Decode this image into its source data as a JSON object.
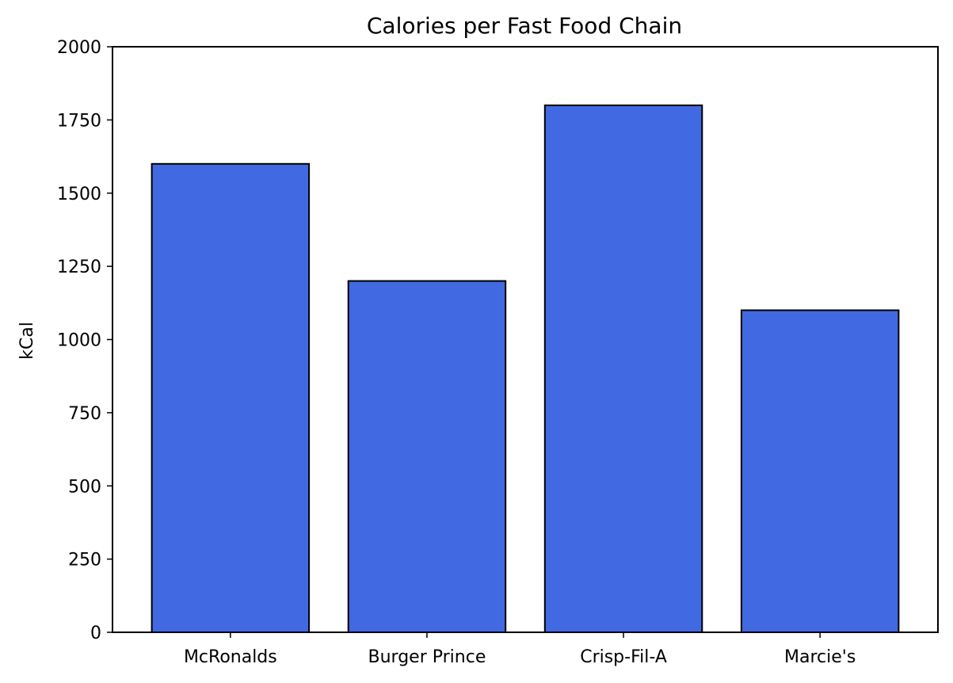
{
  "chart_data": {
    "type": "bar",
    "title": "Calories per Fast Food Chain",
    "xlabel": "",
    "ylabel": "kCal",
    "categories": [
      "McRonalds",
      "Burger Prince",
      "Crisp-Fil-A",
      "Marcie's"
    ],
    "values": [
      1600,
      1200,
      1800,
      1100
    ],
    "ylim": [
      0,
      2000
    ],
    "yticks": [
      "0",
      "250",
      "500",
      "750",
      "1000",
      "1250",
      "1500",
      "1750",
      "2000"
    ],
    "grid": false,
    "legend": "none",
    "colors": {
      "bar_fill": "#4169e1",
      "bar_edge": "#000000",
      "axes": "#000000"
    }
  }
}
